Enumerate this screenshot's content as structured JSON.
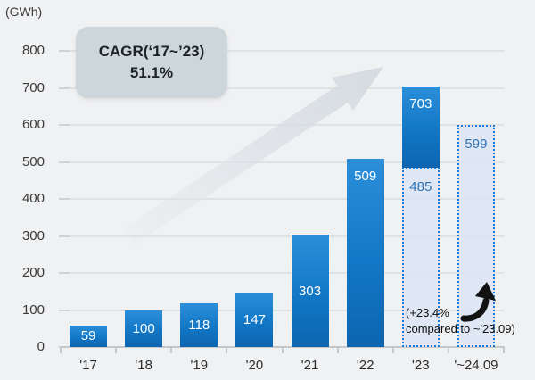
{
  "unit_label": "(GWh)",
  "cagr_box": {
    "line1": "CAGR(‘17~’23)",
    "line2": "51.1%"
  },
  "annotation": {
    "line1": "(+23.4%",
    "line2": "compared to ~'23.09)"
  },
  "colors": {
    "background": "#f0f1f3",
    "bar_top": "#2b8fda",
    "bar_mid": "#1277c6",
    "bar_bottom": "#0c65b0",
    "dashed_border": "#1e78cf",
    "dashed_fill": "#dce5f5",
    "dashed_label": "#2e74b5",
    "bar_label": "#ffffff",
    "gridline": "#dfe1e3",
    "axis": "#c5c7c9",
    "cagr_box_bg": "#ccd6db",
    "growth_arrow": "#d8dde2"
  },
  "chart_data": {
    "type": "bar",
    "title": "",
    "unit": "GWh",
    "ylabel": "(GWh)",
    "xlabel": "",
    "ylim": [
      0,
      800
    ],
    "yticks": [
      0,
      100,
      200,
      300,
      400,
      500,
      600,
      700,
      800
    ],
    "grid": true,
    "legend": false,
    "categories": [
      "'17",
      "'18",
      "'19",
      "'20",
      "'21",
      "'22",
      "'23",
      "'~24.09"
    ],
    "values": [
      59,
      100,
      118,
      147,
      303,
      509,
      703,
      599
    ],
    "bars": [
      {
        "category": "'17",
        "segments": [
          {
            "from": 0,
            "to": 59,
            "style": "solid",
            "label": "59",
            "label_pos": "center"
          }
        ]
      },
      {
        "category": "'18",
        "segments": [
          {
            "from": 0,
            "to": 100,
            "style": "solid",
            "label": "100",
            "label_pos": "center"
          }
        ]
      },
      {
        "category": "'19",
        "segments": [
          {
            "from": 0,
            "to": 118,
            "style": "solid",
            "label": "118",
            "label_pos": "center"
          }
        ]
      },
      {
        "category": "'20",
        "segments": [
          {
            "from": 0,
            "to": 147,
            "style": "solid",
            "label": "147",
            "label_pos": "center"
          }
        ]
      },
      {
        "category": "'21",
        "segments": [
          {
            "from": 0,
            "to": 303,
            "style": "solid",
            "label": "303",
            "label_pos": "center"
          }
        ]
      },
      {
        "category": "'22",
        "segments": [
          {
            "from": 0,
            "to": 509,
            "style": "solid",
            "label": "509",
            "label_pos": "top"
          }
        ]
      },
      {
        "category": "'23",
        "segments": [
          {
            "from": 485,
            "to": 703,
            "style": "solid",
            "label": "703",
            "label_pos": "top"
          },
          {
            "from": 0,
            "to": 485,
            "style": "dashed",
            "label": "485",
            "label_pos": "top"
          }
        ]
      },
      {
        "category": "'~24.09",
        "segments": [
          {
            "from": 0,
            "to": 599,
            "style": "dashed",
            "label": "599",
            "label_pos": "top"
          }
        ]
      }
    ]
  }
}
